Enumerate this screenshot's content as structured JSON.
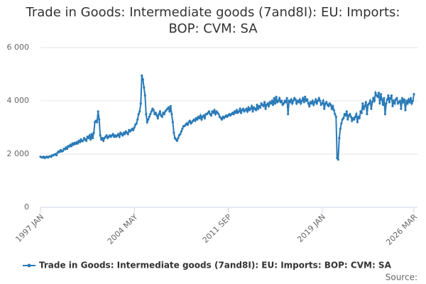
{
  "chart_data": {
    "type": "line",
    "title": "Trade in Goods: Intermediate goods (7and8I): EU: Imports: BOP: CVM: SA",
    "source": "Source:",
    "categories": [
      "1997 JAN",
      null,
      null,
      null,
      null,
      null,
      null,
      null,
      null,
      null,
      null,
      null,
      null,
      null,
      null,
      null,
      null,
      null,
      null,
      null,
      null,
      null,
      null,
      null,
      null,
      null,
      null,
      null,
      null,
      null,
      null,
      null,
      null,
      null,
      null,
      null,
      null,
      null,
      null,
      null,
      null,
      null,
      null,
      null,
      null,
      null,
      null,
      null,
      null,
      null,
      null,
      null,
      null,
      null,
      null,
      null,
      null,
      null,
      null,
      null,
      null,
      null,
      null,
      null,
      null,
      null,
      null,
      null,
      null,
      null,
      null,
      null,
      null,
      null,
      null,
      null,
      null,
      null,
      null,
      null,
      null,
      null,
      null,
      null,
      null,
      null,
      null,
      null,
      "2004 MAY",
      null,
      null,
      null,
      null,
      null,
      null,
      null,
      null,
      null,
      null,
      null,
      null,
      null,
      null,
      null,
      null,
      null,
      null,
      null,
      null,
      null,
      null,
      null,
      null,
      null,
      null,
      null,
      null,
      null,
      null,
      null,
      null,
      null,
      null,
      null,
      null,
      null,
      null,
      null,
      null,
      null,
      null,
      null,
      null,
      null,
      null,
      null,
      null,
      null,
      null,
      null,
      null,
      null,
      null,
      null,
      null,
      null,
      null,
      null,
      null,
      null,
      null,
      null,
      null,
      null,
      null,
      null,
      null,
      null,
      null,
      null,
      null,
      null,
      null,
      null,
      null,
      null,
      null,
      null,
      null,
      null,
      null,
      null,
      null,
      null,
      null,
      null,
      "2011 SEP",
      null,
      null,
      null,
      null,
      null,
      null,
      null,
      null,
      null,
      null,
      null,
      null,
      null,
      null,
      null,
      null,
      null,
      null,
      null,
      null,
      null,
      null,
      null,
      null,
      null,
      null,
      null,
      null,
      null,
      null,
      null,
      null,
      null,
      null,
      null,
      null,
      null,
      null,
      null,
      null,
      null,
      null,
      null,
      null,
      null,
      null,
      null,
      null,
      null,
      null,
      null,
      null,
      null,
      null,
      null,
      null,
      null,
      null,
      null,
      null,
      null,
      null,
      null,
      null,
      null,
      null,
      null,
      null,
      null,
      null,
      null,
      null,
      null,
      null,
      null,
      null,
      null,
      null,
      null,
      null,
      null,
      null,
      null,
      null,
      null,
      null,
      null,
      "2019 JAN",
      null,
      null,
      null,
      null,
      null,
      null,
      null,
      null,
      null,
      null,
      null,
      null,
      null,
      null,
      null,
      null,
      null,
      null,
      null,
      null,
      null,
      null,
      null,
      null,
      null,
      null,
      null,
      null,
      null,
      null,
      null,
      null,
      null,
      null,
      null,
      null,
      null,
      null,
      null,
      null,
      null,
      null,
      null,
      null,
      null,
      null,
      null,
      null,
      null,
      null,
      null,
      null,
      null,
      null,
      null,
      null,
      null,
      null,
      null,
      null,
      null,
      null,
      null,
      null,
      null,
      null,
      null,
      null,
      null,
      null,
      null,
      null,
      null,
      null,
      null,
      null,
      null,
      null,
      null,
      null,
      null,
      null,
      null,
      null,
      null,
      "2026 MAR"
    ],
    "series": [
      {
        "name": "Trade in Goods: Intermediate goods (7and8I): EU: Imports: BOP: CVM: SA",
        "color": "#2a7ab8",
        "values": [
          1900,
          1880,
          1870,
          1900,
          1850,
          1880,
          1900,
          1870,
          1900,
          1920,
          1900,
          1950,
          1950,
          1980,
          2000,
          1960,
          2050,
          2100,
          2080,
          2150,
          2100,
          2120,
          2200,
          2180,
          2250,
          2200,
          2300,
          2280,
          2350,
          2300,
          2400,
          2350,
          2420,
          2380,
          2450,
          2400,
          2500,
          2450,
          2550,
          2480,
          2500,
          2600,
          2550,
          2500,
          2650,
          2600,
          2700,
          2550,
          2750,
          2600,
          2800,
          3200,
          3250,
          3200,
          3600,
          3300,
          2700,
          2550,
          2600,
          2500,
          2600,
          2650,
          2700,
          2600,
          2650,
          2700,
          2650,
          2700,
          2750,
          2650,
          2700,
          2650,
          2700,
          2750,
          2650,
          2800,
          2750,
          2700,
          2800,
          2750,
          2850,
          2800,
          2750,
          2900,
          2850,
          2900,
          2950,
          2900,
          3000,
          3100,
          3150,
          3300,
          3500,
          3600,
          3900,
          4950,
          4800,
          4500,
          4200,
          3500,
          3200,
          3300,
          3400,
          3500,
          3600,
          3700,
          3650,
          3500,
          3550,
          3450,
          3350,
          3500,
          3600,
          3450,
          3400,
          3550,
          3500,
          3600,
          3650,
          3700,
          3750,
          3600,
          3800,
          3500,
          3200,
          2800,
          2600,
          2550,
          2500,
          2600,
          2700,
          2750,
          2850,
          2950,
          3050,
          3050,
          3100,
          3150,
          3100,
          3200,
          3250,
          3150,
          3200,
          3250,
          3300,
          3250,
          3350,
          3300,
          3400,
          3350,
          3450,
          3300,
          3400,
          3450,
          3350,
          3500,
          3500,
          3550,
          3600,
          3500,
          3450,
          3600,
          3550,
          3650,
          3500,
          3600,
          3550,
          3500,
          3400,
          3350,
          3300,
          3400,
          3350,
          3400,
          3450,
          3400,
          3450,
          3500,
          3450,
          3500,
          3550,
          3500,
          3600,
          3550,
          3650,
          3550,
          3600,
          3700,
          3550,
          3650,
          3700,
          3600,
          3650,
          3700,
          3600,
          3750,
          3650,
          3700,
          3800,
          3600,
          3750,
          3700,
          3650,
          3850,
          3700,
          3800,
          3750,
          3900,
          3850,
          3800,
          3950,
          3700,
          3850,
          3900,
          3800,
          3950,
          3900,
          4000,
          3850,
          4100,
          3900,
          4150,
          3950,
          4000,
          4100,
          3950,
          4000,
          3850,
          3900,
          4000,
          3950,
          4100,
          3500,
          4000,
          3950,
          4050,
          3900,
          4000,
          4100,
          4050,
          3900,
          4000,
          3950,
          4050,
          3900,
          4000,
          4100,
          3950,
          4150,
          4000,
          4050,
          3900,
          3800,
          3950,
          3900,
          4000,
          3850,
          3950,
          4050,
          3900,
          4000,
          4100,
          4000,
          3850,
          3900,
          4000,
          3700,
          3900,
          3950,
          3850,
          3800,
          3900,
          3850,
          3700,
          3800,
          3650,
          3500,
          3400,
          1850,
          1800,
          2600,
          2950,
          3150,
          3300,
          3350,
          3500,
          3450,
          3600,
          3300,
          3450,
          3500,
          3400,
          3250,
          3350,
          3300,
          3400,
          3500,
          3200,
          3400,
          3350,
          3600,
          3550,
          3900,
          3700,
          3800,
          3950,
          3500,
          3850,
          3900,
          4000,
          3700,
          3950,
          4100,
          4000,
          4300,
          4200,
          4150,
          4300,
          3900,
          4250,
          4050,
          3850,
          4100,
          3500,
          3900,
          4050,
          4200,
          3950,
          4100,
          4200,
          3800,
          4000,
          3900,
          4050,
          4100,
          3900,
          3950,
          4000,
          3700,
          4100,
          3950,
          4050,
          3650,
          4000,
          3900,
          4050,
          3950,
          4100,
          3900,
          4000,
          4250
        ]
      }
    ],
    "ylim": [
      0,
      6000
    ],
    "yticks": [
      0,
      {
        "value": 2000,
        "label": "2 000"
      },
      {
        "value": 4000,
        "label": "4 000"
      },
      {
        "value": 6000,
        "label": "6 000"
      }
    ],
    "grid": true
  }
}
